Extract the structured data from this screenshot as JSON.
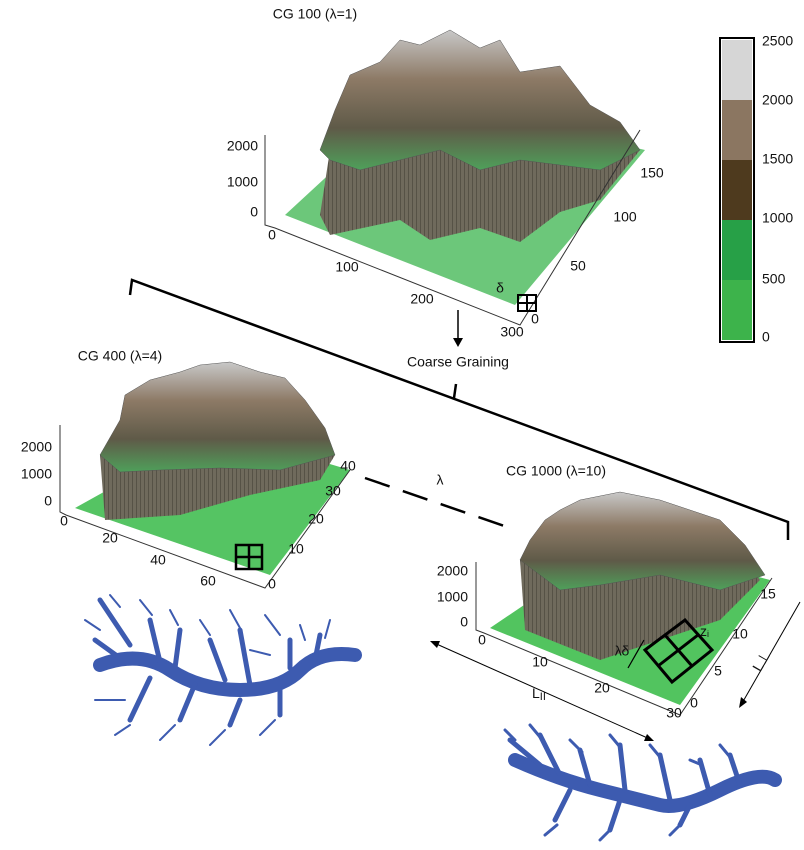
{
  "panels": [
    {
      "title": "CG 100 (λ=1)",
      "z_ticks": [
        "0",
        "1000",
        "2000"
      ],
      "x_ticks": [
        "0",
        "100",
        "200",
        "300"
      ],
      "y_ticks": [
        "0",
        "50",
        "100",
        "150"
      ],
      "cell_label": "δ"
    },
    {
      "title": "CG 400 (λ=4)",
      "z_ticks": [
        "0",
        "1000",
        "2000"
      ],
      "x_ticks": [
        "0",
        "20",
        "40",
        "60"
      ],
      "y_ticks": [
        "0",
        "10",
        "20",
        "30",
        "40"
      ]
    },
    {
      "title": "CG 1000 (λ=10)",
      "z_ticks": [
        "0",
        "1000",
        "2000"
      ],
      "x_ticks": [
        "0",
        "10",
        "20",
        "30"
      ],
      "y_ticks": [
        "0",
        "5",
        "10",
        "15"
      ],
      "cell_label": "λδ",
      "point_label": "z",
      "point_subscript": "i",
      "length_parallel": "L",
      "length_parallel_sub": "II",
      "length_perp": "L⊥"
    }
  ],
  "colorbar": {
    "labels": [
      "2500",
      "2000",
      "1500",
      "1000",
      "500",
      "0"
    ]
  },
  "process_label": "Coarse Graining",
  "scale_label": "λ"
}
